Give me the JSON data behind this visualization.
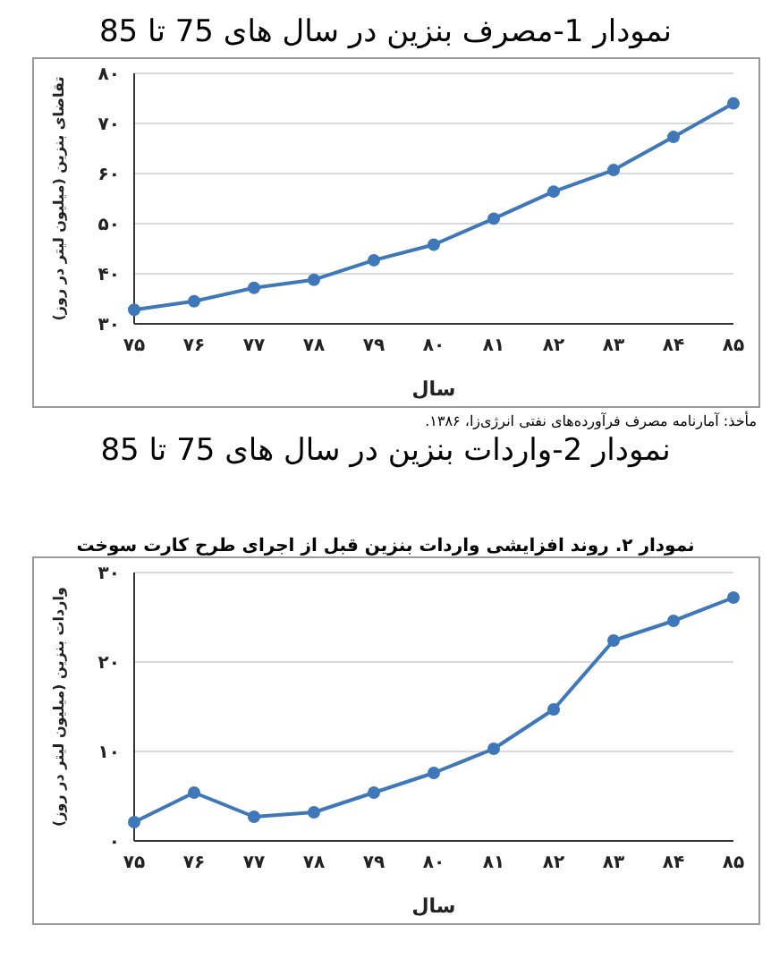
{
  "chart_data": [
    {
      "type": "line",
      "title": "نمودار 1-مصرف بنزین در سال های 75 تا 85",
      "xlabel": "سال",
      "ylabel": "تقاضای بنزین (میلیون لیتر در روز)",
      "annotations": [
        "مأخذ: آمارنامه مصرف فرآورده‌های نفتی انرژی‌زا، ۱۳۸۶."
      ],
      "categories": [
        "۷۵",
        "۷۶",
        "۷۷",
        "۷۸",
        "۷۹",
        "۸۰",
        "۸۱",
        "۸۲",
        "۸۳",
        "۸۴",
        "۸۵"
      ],
      "series": [
        {
          "color": "#3f78b8",
          "values": [
            32.8,
            34.5,
            37.2,
            38.8,
            42.7,
            45.8,
            51.0,
            56.4,
            60.7,
            67.3,
            74.0
          ]
        }
      ],
      "ylim": [
        30,
        80
      ],
      "yticks": [
        {
          "value": 30,
          "label": "۳۰"
        },
        {
          "value": 40,
          "label": "۴۰"
        },
        {
          "value": 50,
          "label": "۵۰"
        },
        {
          "value": 60,
          "label": "۶۰"
        },
        {
          "value": 70,
          "label": "۷۰"
        },
        {
          "value": 80,
          "label": "۸۰"
        }
      ],
      "grid": "y",
      "marker": "circle",
      "line_style": "solid",
      "legend": false
    },
    {
      "type": "line",
      "title": "نمودار 2-واردات بنزین در سال های 75 تا 85",
      "subtitle": "نمودار ۲. روند افزایشی واردات بنزین قبل از اجرای طرح کارت سوخت",
      "xlabel": "سال",
      "ylabel": "واردات بنزین (میلیون لیتر در روز)",
      "categories": [
        "۷۵",
        "۷۶",
        "۷۷",
        "۷۸",
        "۷۹",
        "۸۰",
        "۸۱",
        "۸۲",
        "۸۳",
        "۸۴",
        "۸۵"
      ],
      "series": [
        {
          "color": "#3f78b8",
          "values": [
            2.1,
            5.4,
            2.7,
            3.2,
            5.4,
            7.6,
            10.3,
            14.7,
            22.4,
            24.6,
            27.2
          ]
        }
      ],
      "ylim": [
        0,
        30
      ],
      "yticks": [
        {
          "value": 0,
          "label": "۰"
        },
        {
          "value": 10,
          "label": "۱۰"
        },
        {
          "value": 20,
          "label": "۲۰"
        },
        {
          "value": 30,
          "label": "۳۰"
        }
      ],
      "grid": "y",
      "marker": "circle",
      "line_style": "solid",
      "legend": false
    }
  ]
}
